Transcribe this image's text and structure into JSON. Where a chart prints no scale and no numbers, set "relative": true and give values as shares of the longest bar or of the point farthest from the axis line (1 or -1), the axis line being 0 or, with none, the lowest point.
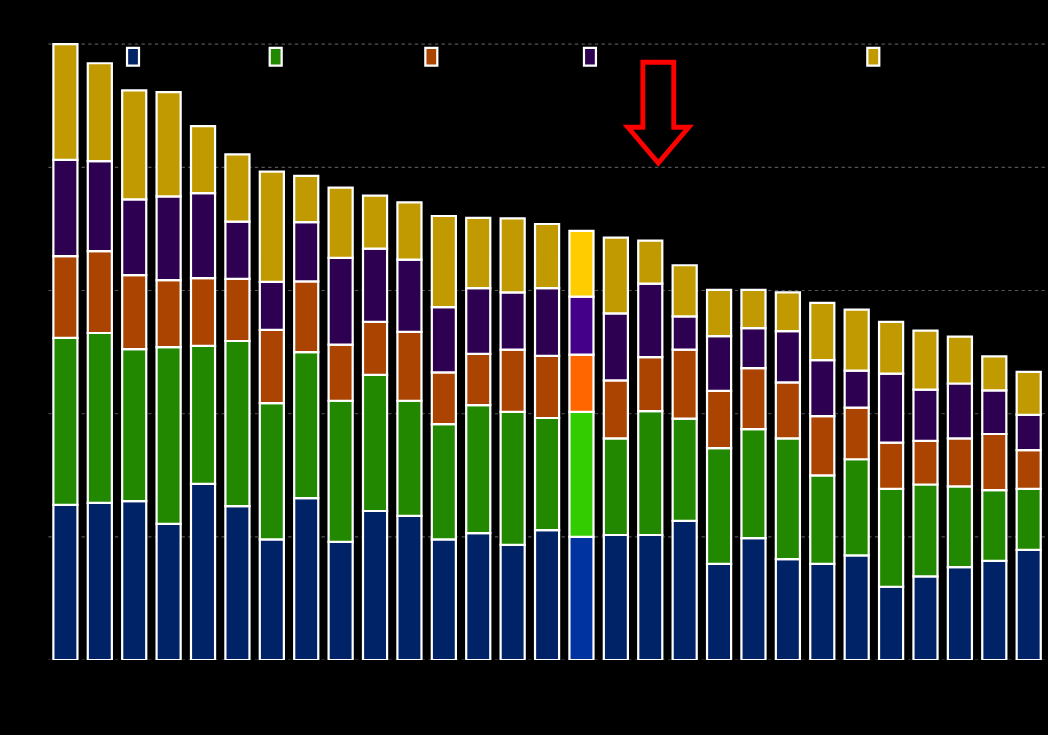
{
  "chart_data": {
    "type": "bar",
    "stacked": true,
    "relative": true,
    "grid": "y",
    "categories": [
      null,
      null,
      null,
      null,
      null,
      null,
      null,
      null,
      null,
      null,
      null,
      null,
      null,
      null,
      null,
      null,
      null,
      null,
      null,
      null,
      null,
      null,
      null,
      null,
      null,
      null,
      null,
      null,
      null
    ],
    "series": [
      {
        "color": "#002266",
        "colors": [
          "#002266",
          "#002266",
          "#002266",
          "#002266",
          "#002266",
          "#002266",
          "#002266",
          "#002266",
          "#002266",
          "#002266",
          "#002266",
          "#002266",
          "#002266",
          "#002266",
          "#002266",
          "#0033a0",
          "#002266",
          "#002266",
          "#002266",
          "#002266",
          "#002266",
          "#002266",
          "#002266",
          "#002266",
          "#002266",
          "#002266",
          "#002266",
          "#002266",
          "#002266"
        ],
        "values": [
          0.252,
          0.255,
          0.258,
          0.221,
          0.286,
          0.25,
          0.196,
          0.263,
          0.192,
          0.242,
          0.234,
          0.196,
          0.206,
          0.187,
          0.211,
          0.2,
          0.203,
          0.203,
          0.226,
          0.156,
          0.198,
          0.164,
          0.156,
          0.17,
          0.119,
          0.136,
          0.151,
          0.161,
          0.179
        ]
      },
      {
        "color": "#228800",
        "colors": [
          "#228800",
          "#228800",
          "#228800",
          "#228800",
          "#228800",
          "#228800",
          "#228800",
          "#228800",
          "#228800",
          "#228800",
          "#228800",
          "#228800",
          "#228800",
          "#228800",
          "#228800",
          "#33cc00",
          "#228800",
          "#228800",
          "#228800",
          "#228800",
          "#228800",
          "#228800",
          "#228800",
          "#228800",
          "#228800",
          "#228800",
          "#228800",
          "#228800",
          "#228800"
        ],
        "values": [
          0.271,
          0.276,
          0.247,
          0.287,
          0.224,
          0.268,
          0.221,
          0.237,
          0.229,
          0.221,
          0.187,
          0.187,
          0.208,
          0.216,
          0.182,
          0.203,
          0.157,
          0.201,
          0.166,
          0.188,
          0.177,
          0.196,
          0.144,
          0.156,
          0.159,
          0.149,
          0.131,
          0.115,
          0.099
        ]
      },
      {
        "color": "#aa4400",
        "colors": [
          "#aa4400",
          "#aa4400",
          "#aa4400",
          "#aa4400",
          "#aa4400",
          "#aa4400",
          "#aa4400",
          "#aa4400",
          "#aa4400",
          "#aa4400",
          "#aa4400",
          "#aa4400",
          "#aa4400",
          "#aa4400",
          "#aa4400",
          "#ff6600",
          "#aa4400",
          "#aa4400",
          "#aa4400",
          "#aa4400",
          "#aa4400",
          "#aa4400",
          "#aa4400",
          "#aa4400",
          "#aa4400",
          "#aa4400",
          "#aa4400",
          "#aa4400",
          "#aa4400"
        ],
        "values": [
          0.133,
          0.133,
          0.12,
          0.109,
          0.11,
          0.101,
          0.119,
          0.115,
          0.091,
          0.086,
          0.112,
          0.084,
          0.083,
          0.101,
          0.101,
          0.093,
          0.094,
          0.088,
          0.112,
          0.093,
          0.099,
          0.091,
          0.096,
          0.084,
          0.075,
          0.071,
          0.078,
          0.091,
          0.063
        ]
      },
      {
        "color": "#2e0052",
        "colors": [
          "#2e0052",
          "#2e0052",
          "#2e0052",
          "#2e0052",
          "#2e0052",
          "#2e0052",
          "#2e0052",
          "#2e0052",
          "#2e0052",
          "#2e0052",
          "#2e0052",
          "#2e0052",
          "#2e0052",
          "#2e0052",
          "#2e0052",
          "#440088",
          "#2e0052",
          "#2e0052",
          "#2e0052",
          "#2e0052",
          "#2e0052",
          "#2e0052",
          "#2e0052",
          "#2e0052",
          "#2e0052",
          "#2e0052",
          "#2e0052",
          "#2e0052",
          "#2e0052"
        ],
        "values": [
          0.156,
          0.146,
          0.123,
          0.136,
          0.138,
          0.093,
          0.078,
          0.096,
          0.141,
          0.119,
          0.117,
          0.106,
          0.107,
          0.093,
          0.11,
          0.094,
          0.109,
          0.119,
          0.054,
          0.089,
          0.065,
          0.083,
          0.091,
          0.06,
          0.112,
          0.083,
          0.089,
          0.071,
          0.057
        ]
      },
      {
        "color": "#c09a00",
        "colors": [
          "#c09a00",
          "#c09a00",
          "#c09a00",
          "#c09a00",
          "#c09a00",
          "#c09a00",
          "#c09a00",
          "#c09a00",
          "#c09a00",
          "#c09a00",
          "#c09a00",
          "#c09a00",
          "#c09a00",
          "#c09a00",
          "#c09a00",
          "#ffcc00",
          "#c09a00",
          "#c09a00",
          "#c09a00",
          "#c09a00",
          "#c09a00",
          "#c09a00",
          "#c09a00",
          "#c09a00",
          "#c09a00",
          "#c09a00",
          "#c09a00",
          "#c09a00",
          "#c09a00"
        ],
        "values": [
          0.188,
          0.159,
          0.177,
          0.169,
          0.109,
          0.109,
          0.179,
          0.075,
          0.114,
          0.086,
          0.093,
          0.148,
          0.114,
          0.12,
          0.104,
          0.107,
          0.123,
          0.07,
          0.083,
          0.075,
          0.062,
          0.063,
          0.093,
          0.099,
          0.084,
          0.096,
          0.076,
          0.055,
          0.07
        ]
      }
    ]
  }
}
